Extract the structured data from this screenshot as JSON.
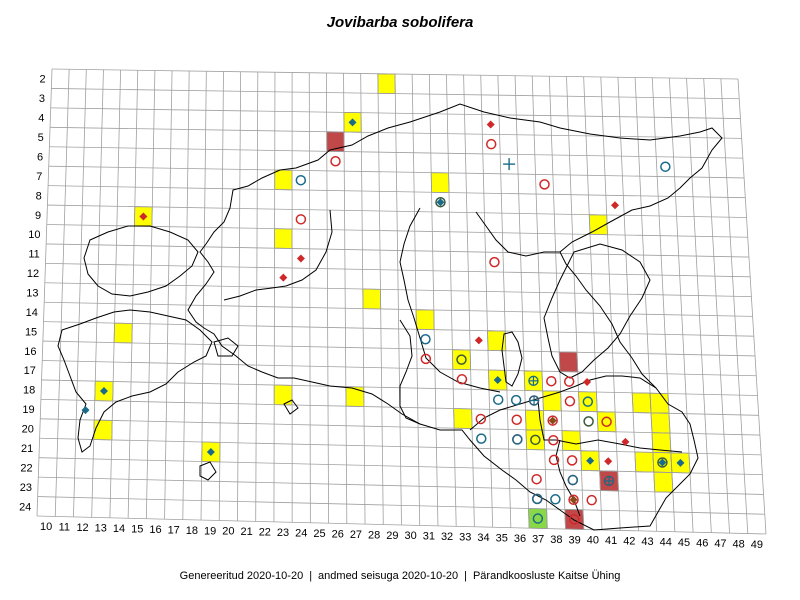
{
  "title": "Jovibarba sobolifera",
  "footer": {
    "generated": "Genereeritud 2020-10-20",
    "data_state": "andmed seisuga 2020-10-20",
    "organisation": "Pärandkoosluste Kaitse Ühing"
  },
  "grid": {
    "x_labels": [
      "10",
      "11",
      "12",
      "13",
      "14",
      "15",
      "16",
      "17",
      "18",
      "19",
      "20",
      "21",
      "22",
      "23",
      "24",
      "25",
      "26",
      "27",
      "28",
      "29",
      "30",
      "31",
      "32",
      "33",
      "34",
      "35",
      "36",
      "37",
      "38",
      "39",
      "40",
      "41",
      "42",
      "43",
      "44",
      "45",
      "46",
      "47",
      "48",
      "49"
    ],
    "y_labels": [
      "2",
      "3",
      "4",
      "5",
      "6",
      "7",
      "8",
      "9",
      "10",
      "11",
      "12",
      "13",
      "14",
      "15",
      "16",
      "17",
      "18",
      "19",
      "20",
      "21",
      "22",
      "23",
      "24"
    ]
  },
  "colors": {
    "grid_line": "#a0a0a0",
    "yellow_cell": "#ffff00",
    "dark_red_cell": "#c04848",
    "green_cell": "#88d848",
    "red_marker": "#d02828",
    "blue_marker": "#1a6a8a",
    "brown_marker": "#8a4a1a"
  },
  "records": {
    "yellow_squares": [
      [
        29,
        2
      ],
      [
        27,
        4
      ],
      [
        23,
        7
      ],
      [
        32,
        7
      ],
      [
        15,
        9
      ],
      [
        41,
        9
      ],
      [
        23,
        10
      ],
      [
        28,
        13
      ],
      [
        31,
        14
      ],
      [
        14,
        15
      ],
      [
        35,
        15
      ],
      [
        33,
        16
      ],
      [
        35,
        17
      ],
      [
        37,
        17
      ],
      [
        38,
        18
      ],
      [
        40,
        18
      ],
      [
        43,
        18
      ],
      [
        44,
        18
      ],
      [
        13,
        18
      ],
      [
        23,
        18
      ],
      [
        27,
        18
      ],
      [
        33,
        19
      ],
      [
        37,
        19
      ],
      [
        41,
        19
      ],
      [
        44,
        19
      ],
      [
        13,
        20
      ],
      [
        37,
        20
      ],
      [
        39,
        20
      ],
      [
        44,
        20
      ],
      [
        19,
        21
      ],
      [
        40,
        21
      ],
      [
        43,
        21
      ],
      [
        44,
        21
      ],
      [
        45,
        21
      ],
      [
        44,
        22
      ]
    ],
    "dark_red_squares": [
      [
        26,
        5
      ],
      [
        39,
        16
      ],
      [
        41,
        22
      ],
      [
        39,
        24
      ]
    ],
    "green_squares": [
      [
        37,
        24
      ]
    ],
    "red_circles": [
      [
        35,
        5
      ],
      [
        26,
        6
      ],
      [
        38,
        7
      ],
      [
        24,
        9
      ],
      [
        35,
        11
      ],
      [
        31,
        16
      ],
      [
        33,
        17
      ],
      [
        38,
        17
      ],
      [
        39,
        17
      ],
      [
        37,
        18
      ],
      [
        39,
        18
      ],
      [
        34,
        19
      ],
      [
        36,
        19
      ],
      [
        38,
        19
      ],
      [
        41,
        19
      ],
      [
        36,
        20
      ],
      [
        38,
        20
      ],
      [
        38,
        21
      ],
      [
        39,
        21
      ],
      [
        37,
        22
      ],
      [
        39,
        22
      ],
      [
        41,
        22
      ],
      [
        37,
        23
      ],
      [
        39,
        23
      ],
      [
        40,
        23
      ],
      [
        39,
        24
      ]
    ],
    "blue_circles": [
      [
        45,
        6
      ],
      [
        24,
        7
      ],
      [
        31,
        15
      ],
      [
        35,
        18
      ],
      [
        36,
        18
      ],
      [
        40,
        18
      ],
      [
        34,
        20
      ],
      [
        36,
        20
      ],
      [
        39,
        22
      ],
      [
        37,
        23
      ],
      [
        38,
        23
      ],
      [
        37,
        24
      ]
    ],
    "dark_circles": [
      [
        32,
        8
      ],
      [
        33,
        16
      ],
      [
        40,
        19
      ],
      [
        37,
        20
      ],
      [
        44,
        21
      ]
    ],
    "crossed_circles": [
      [
        37,
        17
      ],
      [
        37,
        18
      ],
      [
        41,
        22
      ]
    ],
    "plus_marks": [
      [
        36,
        6
      ]
    ],
    "red_diamonds": [
      [
        35,
        4
      ],
      [
        42,
        8
      ],
      [
        15,
        9
      ],
      [
        24,
        11
      ],
      [
        23,
        12
      ],
      [
        34,
        15
      ],
      [
        40,
        17
      ],
      [
        42,
        20
      ],
      [
        41,
        21
      ]
    ],
    "blue_diamonds": [
      [
        27,
        4
      ],
      [
        32,
        8
      ],
      [
        35,
        17
      ],
      [
        13,
        18
      ],
      [
        12,
        19
      ],
      [
        19,
        21
      ],
      [
        40,
        21
      ],
      [
        44,
        21
      ],
      [
        45,
        21
      ]
    ],
    "brown_diamonds": [
      [
        38,
        19
      ],
      [
        39,
        23
      ]
    ]
  }
}
